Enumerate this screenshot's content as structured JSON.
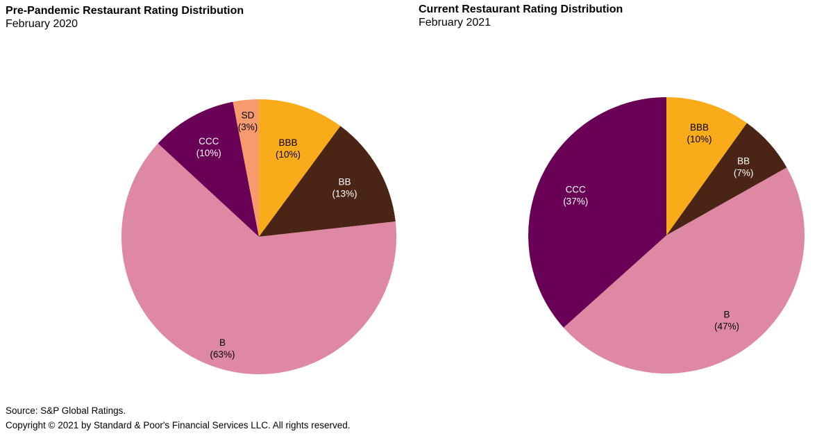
{
  "chart_data": [
    {
      "type": "pie",
      "title": "Pre-Pandemic Restaurant Rating Distribution",
      "subtitle": "February 2020",
      "start_angle": "12 o'clock, clockwise",
      "slices": [
        {
          "label": "BBB",
          "value": 10,
          "display": "(10%)",
          "color": "#FAAB1A",
          "text_color": "#000000"
        },
        {
          "label": "BB",
          "value": 13,
          "display": "(13%)",
          "color": "#4A2515",
          "text_color": "#ffffff"
        },
        {
          "label": "B",
          "value": 63,
          "display": "(63%)",
          "color": "#DF88A3",
          "text_color": "#000000"
        },
        {
          "label": "CCC",
          "value": 10,
          "display": "(10%)",
          "color": "#6A0055",
          "text_color": "#ffffff"
        },
        {
          "label": "SD",
          "value": 3,
          "display": "(3%)",
          "color": "#F79A6E",
          "text_color": "#000000"
        }
      ]
    },
    {
      "type": "pie",
      "title": "Current Restaurant Rating Distribution",
      "subtitle": "February 2021",
      "start_angle": "12 o'clock, clockwise",
      "slices": [
        {
          "label": "BBB",
          "value": 10,
          "display": "(10%)",
          "color": "#FAAB1A",
          "text_color": "#000000"
        },
        {
          "label": "BB",
          "value": 7,
          "display": "(7%)",
          "color": "#4A2515",
          "text_color": "#ffffff"
        },
        {
          "label": "B",
          "value": 47,
          "display": "(47%)",
          "color": "#DF88A3",
          "text_color": "#000000"
        },
        {
          "label": "CCC",
          "value": 37,
          "display": "(37%)",
          "color": "#6A0055",
          "text_color": "#ffffff"
        }
      ]
    }
  ],
  "footer": {
    "source": "Source: S&P Global Ratings.",
    "copyright": "Copyright © 2021 by Standard & Poor's Financial Services LLC. All rights reserved."
  }
}
